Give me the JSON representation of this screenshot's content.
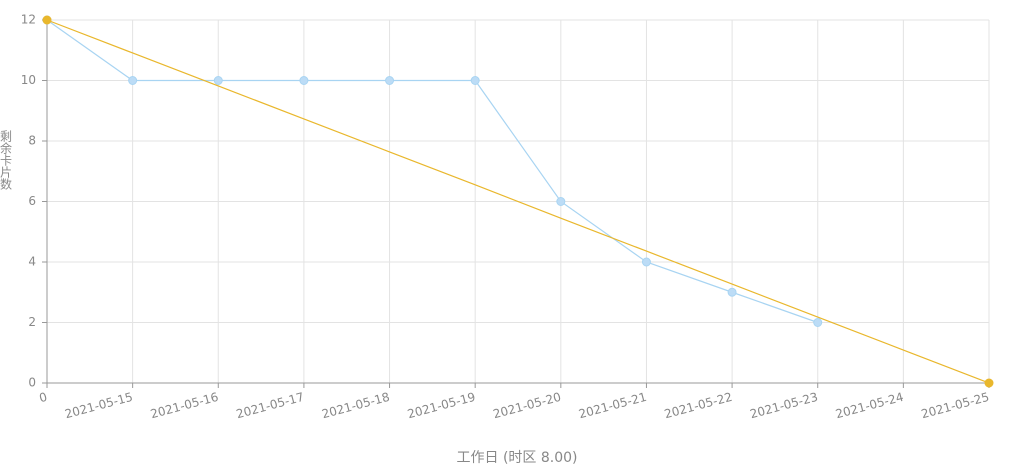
{
  "chart_data": {
    "type": "line",
    "x_label": "工作日 (时区 8.00)",
    "y_label": "剩余卡片数",
    "categories": [
      "0",
      "2021-05-15",
      "2021-05-16",
      "2021-05-17",
      "2021-05-18",
      "2021-05-19",
      "2021-05-20",
      "2021-05-21",
      "2021-05-22",
      "2021-05-23",
      "2021-05-24",
      "2021-05-25"
    ],
    "series": [
      {
        "color": "#a8d4f2",
        "marker_fill": "#bcdcf6",
        "markers": "all",
        "values": [
          12,
          10,
          10,
          10,
          10,
          10,
          6,
          4,
          3,
          2,
          null,
          null
        ]
      },
      {
        "color": "#e9b72c",
        "marker_fill": "#e9b72c",
        "markers": "ends",
        "values": [
          12,
          10.91,
          9.82,
          8.73,
          7.64,
          6.55,
          5.45,
          4.36,
          3.27,
          2.18,
          1.09,
          0
        ]
      }
    ],
    "ylim": [
      0,
      12
    ],
    "yticks": [
      0,
      2,
      4,
      6,
      8,
      10,
      12
    ],
    "grid": true
  }
}
